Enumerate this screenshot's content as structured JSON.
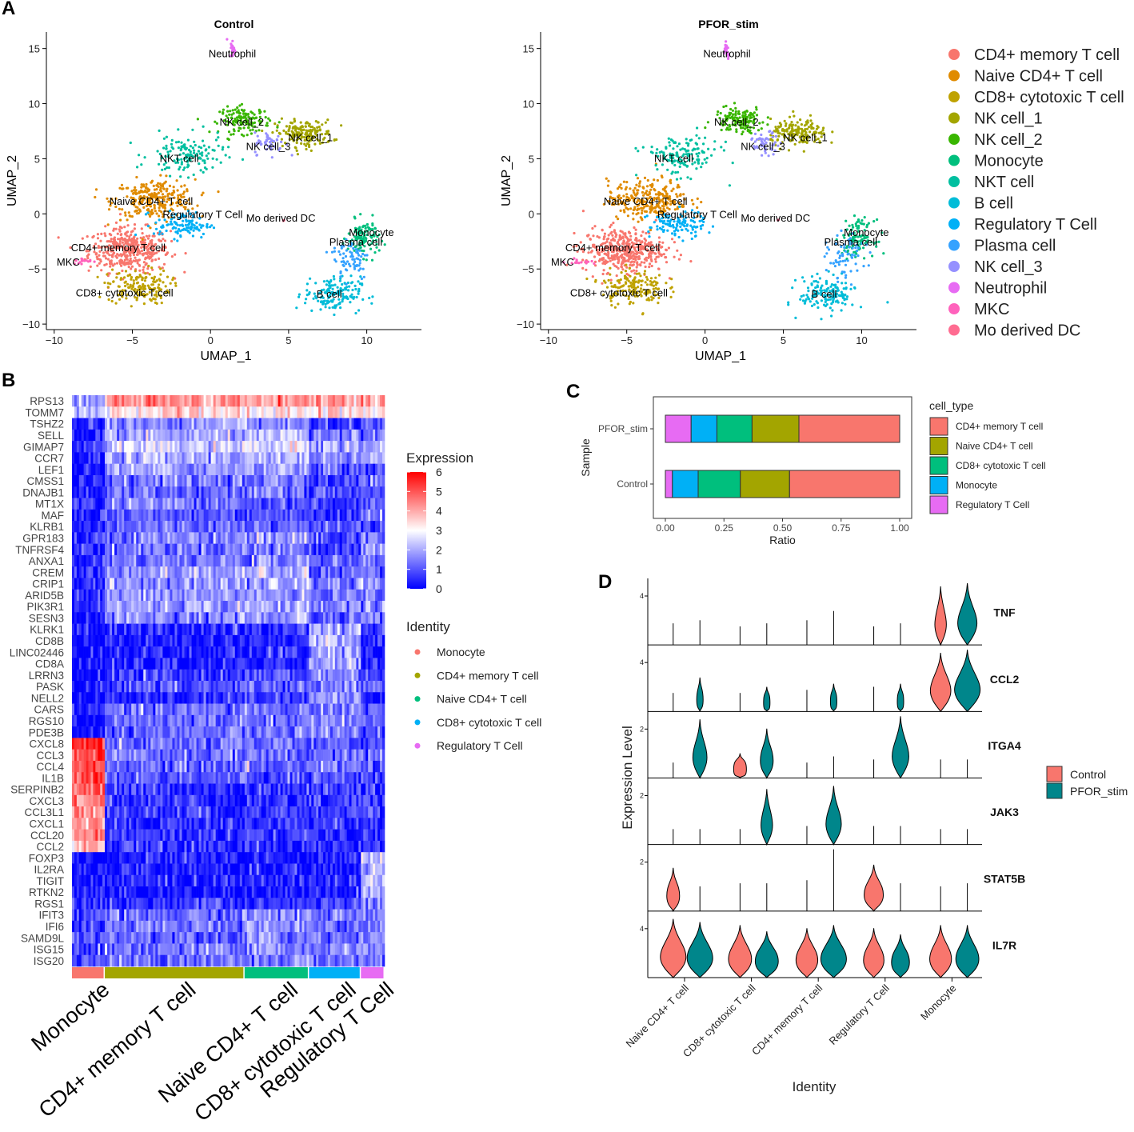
{
  "panel_labels": {
    "a": "A",
    "b": "B",
    "c": "C",
    "d": "D"
  },
  "colors": {
    "CD4+ memory T cell": "#f8766d",
    "Naive CD4+ T cell": "#e08b00",
    "CD8+ cytotoxic T cell": "#bfa200",
    "NK cell_1": "#a3a500",
    "NK cell_2": "#39b600",
    "Monocyte": "#00bf7d",
    "NKT cell": "#00bfa0",
    "B cell": "#00bcd8",
    "Regulatory T Cell": "#00b0f6",
    "Plasma cell": "#35a2ff",
    "NK cell_3": "#9590ff",
    "Neutrophil": "#e76bf3",
    "MKC": "#ff62bc",
    "Mo derived DC": "#ff6c91",
    "control_fill": "#f8766d",
    "stim_fill": "#00868b"
  },
  "chart_data": [
    {
      "id": "umap",
      "type": "scatter",
      "panel_titles": [
        "Control",
        "PFOR_stim"
      ],
      "xlabel": "UMAP_1",
      "ylabel": "UMAP_2",
      "xlim": [
        -10.5,
        13.5
      ],
      "ylim": [
        -10.5,
        16.5
      ],
      "xticks": [
        -10,
        -5,
        0,
        5,
        10
      ],
      "yticks": [
        -10,
        -5,
        0,
        5,
        10,
        15
      ],
      "legend": [
        "CD4+ memory T cell",
        "Naive CD4+ T cell",
        "CD8+ cytotoxic T cell",
        "NK cell_1",
        "NK cell_2",
        "Monocyte",
        "NKT cell",
        "B cell",
        "Regulatory T Cell",
        "Plasma cell",
        "NK cell_3",
        "Neutrophil",
        "MKC",
        "Mo derived DC"
      ],
      "clusters": [
        {
          "name": "CD4+ memory T cell",
          "x": -5.2,
          "y": -3.3,
          "sx": 1.3,
          "sy": 1.0,
          "n": 420
        },
        {
          "name": "Naive CD4+ T cell",
          "x": -3.6,
          "y": 1.3,
          "sx": 1.3,
          "sy": 0.9,
          "n": 280
        },
        {
          "name": "CD8+ cytotoxic T cell",
          "x": -4.6,
          "y": -6.6,
          "sx": 1.0,
          "sy": 0.8,
          "n": 160
        },
        {
          "name": "NK cell_1",
          "x": 6.0,
          "y": 7.3,
          "sx": 0.9,
          "sy": 0.6,
          "n": 170
        },
        {
          "name": "NK cell_2",
          "x": 2.2,
          "y": 8.5,
          "sx": 0.8,
          "sy": 0.6,
          "n": 140
        },
        {
          "name": "Monocyte",
          "x": 9.8,
          "y": -2.2,
          "sx": 0.5,
          "sy": 0.8,
          "n": 110
        },
        {
          "name": "NKT cell",
          "x": -1.5,
          "y": 5.3,
          "sx": 1.2,
          "sy": 0.9,
          "n": 140
        },
        {
          "name": "B cell",
          "x": 7.8,
          "y": -7.3,
          "sx": 0.9,
          "sy": 0.8,
          "n": 150
        },
        {
          "name": "Regulatory T Cell",
          "x": -1.8,
          "y": -1.0,
          "sx": 0.9,
          "sy": 0.6,
          "n": 110
        },
        {
          "name": "Plasma cell",
          "x": 9.0,
          "y": -4.0,
          "sx": 0.6,
          "sy": 1.0,
          "n": 70
        },
        {
          "name": "NK cell_3",
          "x": 3.8,
          "y": 6.4,
          "sx": 0.5,
          "sy": 0.5,
          "n": 50
        },
        {
          "name": "Neutrophil",
          "x": 1.4,
          "y": 15.0,
          "sx": 0.1,
          "sy": 0.4,
          "n": 20
        },
        {
          "name": "MKC",
          "x": -8.0,
          "y": -4.3,
          "sx": 0.4,
          "sy": 0.15,
          "n": 15
        },
        {
          "name": "Mo derived DC",
          "x": 4.7,
          "y": -0.6,
          "sx": 0.05,
          "sy": 0.05,
          "n": 2
        }
      ],
      "annotations": [
        {
          "text": "Neutrophil",
          "x": 1.4,
          "y": 14.5
        },
        {
          "text": "NK cell_2",
          "x": 2.0,
          "y": 8.3
        },
        {
          "text": "NK cell_1",
          "x": 6.4,
          "y": 6.9
        },
        {
          "text": "NK cell_3",
          "x": 3.7,
          "y": 6.1
        },
        {
          "text": "NKT cell",
          "x": -2.0,
          "y": 5.0
        },
        {
          "text": "Naive CD4+ T cell",
          "x": -3.8,
          "y": 1.1
        },
        {
          "text": "Regulatory T Cell",
          "x": -0.5,
          "y": -0.1
        },
        {
          "text": "Mo derived DC",
          "x": 4.5,
          "y": -0.4
        },
        {
          "text": "Monocyte",
          "x": 10.3,
          "y": -1.7
        },
        {
          "text": "Plasma cell",
          "x": 9.3,
          "y": -2.6
        },
        {
          "text": "CD4+ memory T cell",
          "x": -5.9,
          "y": -3.1
        },
        {
          "text": "MKC",
          "x": -9.1,
          "y": -4.4
        },
        {
          "text": "CD8+ cytotoxic T cell",
          "x": -5.5,
          "y": -7.2
        },
        {
          "text": "B cell",
          "x": 7.6,
          "y": -7.3
        }
      ]
    },
    {
      "id": "heatmap",
      "type": "heatmap",
      "genes": [
        "RPS13",
        "TOMM7",
        "TSHZ2",
        "SELL",
        "GIMAP7",
        "CCR7",
        "LEF1",
        "CMSS1",
        "DNAJB1",
        "MT1X",
        "MAF",
        "KLRB1",
        "GPR183",
        "TNFRSF4",
        "ANXA1",
        "CREM",
        "CRIP1",
        "ARID5B",
        "PIK3R1",
        "SESN3",
        "KLRK1",
        "CD8B",
        "LINC02446",
        "CD8A",
        "LRRN3",
        "PASK",
        "NELL2",
        "CARS",
        "RGS10",
        "PDE3B",
        "CXCL8",
        "CCL3",
        "CCL4",
        "IL1B",
        "SERPINB2",
        "CXCL3",
        "CCL3L1",
        "CXCL1",
        "CCL20",
        "CCL2",
        "FOXP3",
        "IL2RA",
        "TIGIT",
        "RTKN2",
        "RGS1",
        "IFIT3",
        "IFI6",
        "SAMD9L",
        "ISG15",
        "ISG20"
      ],
      "groups": [
        "Monocyte",
        "CD4+ memory T cell",
        "Naive CD4+ T cell",
        "CD8+ cytotoxic T cell",
        "Regulatory T Cell"
      ],
      "group_fractions": [
        0.105,
        0.447,
        0.206,
        0.166,
        0.076
      ],
      "group_colors": [
        "#f8766d",
        "#a3a500",
        "#00bf7d",
        "#00b0f6",
        "#e76bf3"
      ],
      "mean_expression": [
        [
          2.0,
          4.2,
          4.0,
          4.1,
          4.0
        ],
        [
          2.2,
          3.4,
          3.3,
          3.4,
          3.3
        ],
        [
          0.3,
          1.6,
          1.4,
          0.6,
          1.2
        ],
        [
          0.3,
          1.9,
          2.2,
          1.3,
          1.2
        ],
        [
          0.5,
          2.3,
          2.6,
          2.0,
          1.6
        ],
        [
          0.4,
          2.0,
          2.2,
          1.4,
          1.5
        ],
        [
          0.3,
          1.8,
          2.0,
          1.1,
          1.0
        ],
        [
          0.3,
          1.5,
          1.3,
          0.8,
          1.1
        ],
        [
          0.5,
          1.2,
          1.4,
          0.8,
          1.0
        ],
        [
          0.6,
          1.6,
          1.0,
          0.7,
          1.0
        ],
        [
          0.3,
          1.0,
          1.1,
          0.7,
          1.2
        ],
        [
          0.4,
          1.3,
          1.3,
          1.1,
          1.0
        ],
        [
          0.5,
          1.6,
          1.8,
          1.0,
          1.1
        ],
        [
          0.3,
          1.4,
          1.3,
          0.7,
          1.5
        ],
        [
          0.6,
          1.4,
          1.5,
          1.0,
          1.3
        ],
        [
          0.5,
          1.9,
          2.2,
          1.0,
          1.2
        ],
        [
          0.7,
          1.8,
          1.9,
          1.6,
          1.5
        ],
        [
          0.4,
          1.7,
          1.9,
          1.4,
          1.3
        ],
        [
          0.5,
          1.9,
          2.0,
          1.6,
          1.5
        ],
        [
          0.3,
          1.6,
          1.8,
          1.1,
          1.2
        ],
        [
          0.2,
          0.5,
          0.6,
          2.1,
          0.6
        ],
        [
          0.1,
          0.3,
          0.4,
          2.0,
          0.4
        ],
        [
          0.1,
          0.3,
          0.4,
          1.9,
          0.4
        ],
        [
          0.1,
          0.3,
          0.4,
          2.1,
          0.4
        ],
        [
          0.1,
          0.6,
          0.9,
          1.6,
          0.5
        ],
        [
          0.2,
          0.9,
          1.1,
          1.5,
          0.8
        ],
        [
          0.1,
          0.4,
          0.6,
          1.9,
          0.5
        ],
        [
          0.3,
          1.2,
          1.3,
          1.4,
          1.1
        ],
        [
          0.3,
          1.3,
          1.4,
          1.8,
          1.2
        ],
        [
          0.2,
          1.2,
          1.3,
          1.5,
          1.0
        ],
        [
          5.6,
          1.2,
          1.1,
          1.0,
          1.0
        ],
        [
          5.2,
          1.3,
          1.3,
          1.5,
          1.1
        ],
        [
          5.0,
          1.2,
          1.2,
          1.6,
          1.1
        ],
        [
          5.1,
          1.1,
          1.0,
          0.9,
          0.9
        ],
        [
          4.6,
          0.6,
          0.6,
          0.6,
          0.6
        ],
        [
          4.4,
          0.6,
          0.6,
          0.6,
          0.6
        ],
        [
          4.3,
          0.7,
          0.7,
          0.8,
          0.7
        ],
        [
          4.3,
          0.6,
          0.6,
          0.6,
          0.6
        ],
        [
          4.2,
          0.6,
          0.6,
          0.6,
          0.7
        ],
        [
          4.0,
          0.5,
          0.5,
          0.5,
          0.5
        ],
        [
          0.2,
          0.3,
          0.2,
          0.2,
          2.3
        ],
        [
          0.2,
          0.3,
          0.3,
          0.2,
          2.0
        ],
        [
          0.2,
          0.4,
          0.3,
          0.5,
          2.2
        ],
        [
          0.2,
          0.2,
          0.2,
          0.2,
          1.9
        ],
        [
          0.5,
          0.6,
          0.6,
          0.7,
          2.0
        ],
        [
          0.9,
          1.2,
          1.5,
          1.2,
          1.6
        ],
        [
          0.8,
          1.4,
          1.6,
          1.3,
          1.5
        ],
        [
          0.8,
          1.3,
          1.5,
          1.3,
          1.5
        ],
        [
          0.8,
          1.4,
          1.6,
          1.4,
          1.5
        ],
        [
          0.8,
          1.3,
          1.5,
          1.3,
          1.4
        ]
      ],
      "legend_title": "Expression",
      "colorbar_ticks": [
        0,
        1,
        2,
        3,
        4,
        5,
        6
      ],
      "identity_title": "Identity",
      "identity_entries": [
        "Monocyte",
        "CD4+ memory T cell",
        "Naive CD4+ T cell",
        "CD8+ cytotoxic T cell",
        "Regulatory T Cell"
      ],
      "identity_colors": [
        "#f8766d",
        "#a3a500",
        "#00bf7d",
        "#00b0f6",
        "#e76bf3"
      ]
    },
    {
      "id": "stacked_bar",
      "type": "bar",
      "orientation": "horizontal",
      "stacked": true,
      "categories": [
        "PFOR_stim",
        "Control"
      ],
      "series": [
        {
          "name": "CD4+ memory T cell",
          "color": "#f8766d",
          "values": [
            0.43,
            0.47
          ]
        },
        {
          "name": "Naive CD4+ T cell",
          "color": "#a3a500",
          "values": [
            0.2,
            0.21
          ]
        },
        {
          "name": "CD8+ cytotoxic T cell",
          "color": "#00bf7d",
          "values": [
            0.15,
            0.18
          ]
        },
        {
          "name": "Monocyte",
          "color": "#00b0f6",
          "values": [
            0.11,
            0.11
          ]
        },
        {
          "name": "Regulatory T Cell",
          "color": "#e76bf3",
          "values": [
            0.11,
            0.03
          ]
        }
      ],
      "xlabel": "Ratio",
      "ylabel": "Sample",
      "xlim": [
        0,
        1
      ],
      "xticks": [
        "0.00",
        "0.25",
        "0.50",
        "0.75",
        "1.00"
      ],
      "legend_title": "cell_type",
      "legend_position": "right"
    },
    {
      "id": "violin",
      "type": "violin",
      "genes": [
        "TNF",
        "CCL2",
        "ITGA4",
        "JAK3",
        "STAT5B",
        "IL7R"
      ],
      "gene_tick": [
        "4",
        "4",
        "2",
        "2",
        "2",
        "4"
      ],
      "identities": [
        "Naive CD4+ T cell",
        "CD8+ cytotoxic T cell",
        "CD4+ memory T cell",
        "Regulatory T Cell",
        "Monocyte"
      ],
      "conditions": [
        "Control",
        "PFOR_stim"
      ],
      "xlabel": "Identity",
      "ylabel": "Expression Level",
      "spike_heights": [
        [
          [
            0.35,
            0.4
          ],
          [
            0.3,
            0.35
          ],
          [
            0.4,
            0.55
          ],
          [
            0.3,
            0.35
          ],
          [
            0.95,
            1.0
          ]
        ],
        [
          [
            0.3,
            0.55
          ],
          [
            0.3,
            0.4
          ],
          [
            0.35,
            0.45
          ],
          [
            0.4,
            0.45
          ],
          [
            0.95,
            1.0
          ]
        ],
        [
          [
            0.25,
            0.95
          ],
          [
            0.4,
            0.8
          ],
          [
            0.25,
            0.35
          ],
          [
            0.3,
            1.0
          ],
          [
            0.3,
            0.3
          ]
        ],
        [
          [
            0.25,
            0.25
          ],
          [
            0.25,
            0.9
          ],
          [
            0.3,
            0.95
          ],
          [
            0.3,
            0.3
          ],
          [
            0.25,
            0.25
          ]
        ],
        [
          [
            0.7,
            0.4
          ],
          [
            0.45,
            0.45
          ],
          [
            0.5,
            1.0
          ],
          [
            0.75,
            0.45
          ],
          [
            0.4,
            0.45
          ]
        ],
        [
          [
            0.95,
            0.9
          ],
          [
            0.85,
            0.75
          ],
          [
            0.8,
            0.85
          ],
          [
            0.8,
            0.7
          ],
          [
            0.85,
            0.85
          ]
        ]
      ],
      "bulb_width": [
        [
          [
            0,
            0
          ],
          [
            0,
            0
          ],
          [
            0,
            0
          ],
          [
            0,
            0
          ],
          [
            0.45,
            0.75
          ]
        ],
        [
          [
            0,
            0.25
          ],
          [
            0,
            0.25
          ],
          [
            0,
            0.25
          ],
          [
            0,
            0.25
          ],
          [
            0.8,
            1.0
          ]
        ],
        [
          [
            0,
            0.55
          ],
          [
            0.5,
            0.5
          ],
          [
            0,
            0
          ],
          [
            0,
            0.65
          ],
          [
            0,
            0
          ]
        ],
        [
          [
            0,
            0
          ],
          [
            0,
            0.45
          ],
          [
            0,
            0.6
          ],
          [
            0,
            0
          ],
          [
            0,
            0
          ]
        ],
        [
          [
            0.5,
            0
          ],
          [
            0,
            0
          ],
          [
            0,
            0
          ],
          [
            0.75,
            0
          ],
          [
            0,
            0
          ]
        ],
        [
          [
            1.0,
            1.0
          ],
          [
            0.9,
            0.9
          ],
          [
            0.85,
            1.0
          ],
          [
            0.8,
            0.7
          ],
          [
            0.85,
            0.9
          ]
        ]
      ]
    }
  ]
}
